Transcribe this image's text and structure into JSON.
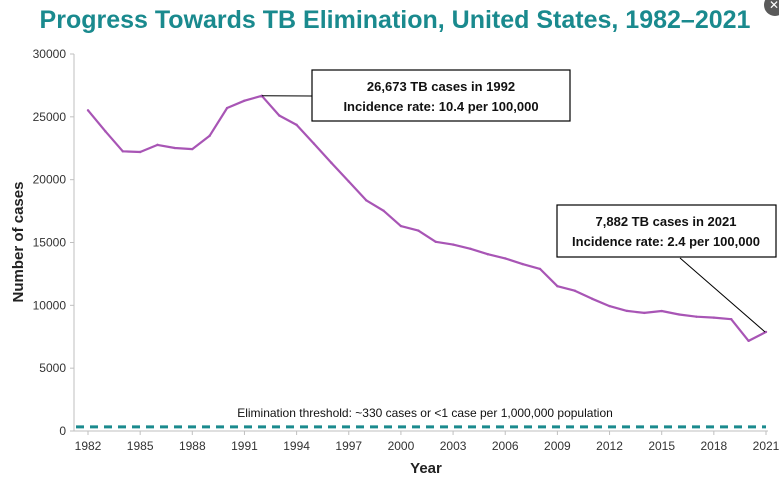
{
  "chart_data": {
    "type": "line",
    "title": "Progress Towards TB Elimination, United States, 1982–2021",
    "xlabel": "Year",
    "ylabel": "Number of cases",
    "xlim": [
      1982,
      2021
    ],
    "ylim": [
      0,
      30000
    ],
    "x_ticks": [
      1982,
      1985,
      1988,
      1991,
      1994,
      1997,
      2000,
      2003,
      2006,
      2009,
      2012,
      2015,
      2018,
      2021
    ],
    "y_ticks": [
      0,
      5000,
      10000,
      15000,
      20000,
      25000,
      30000
    ],
    "grid": false,
    "legend": "none",
    "line_color": "#a855b5",
    "threshold_color": "#1a8a8e",
    "series": [
      {
        "x": [
          1982,
          1983,
          1984,
          1985,
          1986,
          1987,
          1988,
          1989,
          1990,
          1991,
          1992,
          1993,
          1994,
          1995,
          1996,
          1997,
          1998,
          1999,
          2000,
          2001,
          2002,
          2003,
          2004,
          2005,
          2006,
          2007,
          2008,
          2009,
          2010,
          2011,
          2012,
          2013,
          2014,
          2015,
          2016,
          2017,
          2018,
          2019,
          2020,
          2021
        ],
        "values": [
          25520,
          23846,
          22255,
          22201,
          22768,
          22517,
          22436,
          23495,
          25701,
          26283,
          26673,
          25107,
          24361,
          22860,
          21337,
          19851,
          18361,
          17531,
          16308,
          15945,
          15055,
          14835,
          14499,
          14065,
          13732,
          13282,
          12898,
          11523,
          11163,
          10521,
          9940,
          9555,
          9398,
          9546,
          9272,
          9093,
          9025,
          8900,
          7173,
          7882
        ]
      }
    ],
    "threshold": {
      "value": 330,
      "label": "Elimination  threshold:  ~330 cases or <1 case per 1,000,000 population"
    },
    "annotations": [
      {
        "line1": "26,673 TB cases in 1992",
        "line2": "Incidence rate:  10.4 per 100,000",
        "x": 1992,
        "y": 26673
      },
      {
        "line1": "7,882 TB cases in 2021",
        "line2": "Incidence rate:  2.4 per 100,000",
        "x": 2021,
        "y": 7882
      }
    ]
  },
  "ui": {
    "close_icon": "close-icon",
    "close_glyph": "✕"
  }
}
